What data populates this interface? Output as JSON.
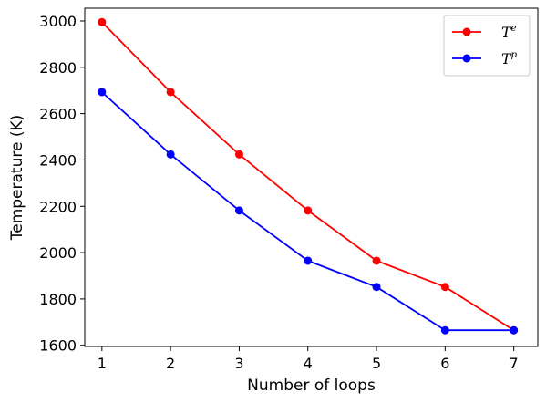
{
  "chart_data": {
    "type": "line",
    "xlabel": "Number of loops",
    "ylabel": "Temperature (K)",
    "x": [
      1,
      2,
      3,
      4,
      5,
      6,
      7
    ],
    "xticks": [
      "1",
      "2",
      "3",
      "4",
      "5",
      "6",
      "7"
    ],
    "yticks": [
      "1600",
      "1800",
      "2000",
      "2200",
      "2400",
      "2600",
      "2800",
      "3000"
    ],
    "xlim": [
      0.75,
      7.35
    ],
    "ylim": [
      1595,
      3055
    ],
    "legend_position": "top-right",
    "grid": false,
    "series": [
      {
        "name": "T",
        "name_sup": "e",
        "color": "#ff0000",
        "marker": "circle",
        "values": [
          2995,
          2693,
          2424,
          2182,
          1965,
          1852,
          1665
        ]
      },
      {
        "name": "T",
        "name_sup": "p",
        "color": "#0000ff",
        "marker": "circle",
        "values": [
          2693,
          2424,
          2182,
          1965,
          1852,
          1665,
          1665
        ]
      }
    ]
  }
}
